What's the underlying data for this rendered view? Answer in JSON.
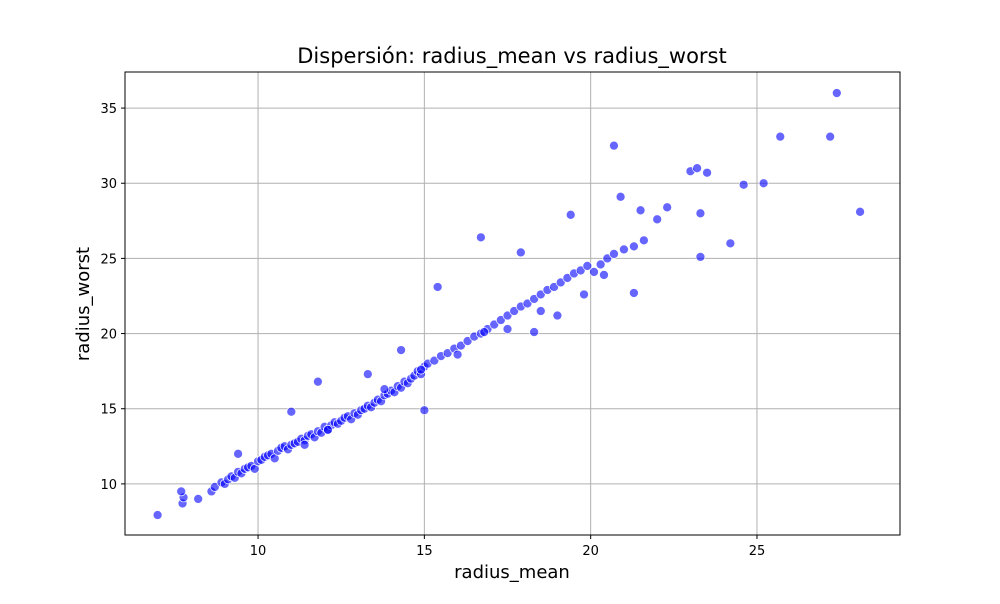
{
  "chart_data": {
    "type": "scatter",
    "title": "Dispersión: radius_mean vs radius_worst",
    "xlabel": "radius_mean",
    "ylabel": "radius_worst",
    "xlim": [
      6.0,
      29.3
    ],
    "ylim": [
      6.6,
      37.4
    ],
    "x_ticks": [
      10,
      15,
      20,
      25
    ],
    "y_ticks": [
      10,
      15,
      20,
      25,
      30,
      35
    ],
    "grid": true,
    "marker_color": "#0000ff",
    "marker_edge_color": "#ffffff",
    "marker_alpha": 0.6,
    "series": [
      {
        "x": [
          6.98,
          7.73,
          7.76,
          7.69,
          8.2,
          8.6,
          8.7,
          8.9,
          9.0,
          9.1,
          9.2,
          9.3,
          9.4,
          9.5,
          9.6,
          9.7,
          9.8,
          9.9,
          10.0,
          10.1,
          10.2,
          10.3,
          10.4,
          10.5,
          10.6,
          10.7,
          10.8,
          10.9,
          11.0,
          11.1,
          11.2,
          11.3,
          11.4,
          11.5,
          11.6,
          11.7,
          11.8,
          11.9,
          12.0,
          12.1,
          12.2,
          12.3,
          12.4,
          12.5,
          12.6,
          12.7,
          12.8,
          12.9,
          13.0,
          13.1,
          13.2,
          13.3,
          13.4,
          13.5,
          13.6,
          13.7,
          13.8,
          13.9,
          14.0,
          14.1,
          14.2,
          14.3,
          14.4,
          14.5,
          14.6,
          14.7,
          14.8,
          14.9,
          15.0,
          15.1,
          15.3,
          15.5,
          15.7,
          15.9,
          16.1,
          16.3,
          16.5,
          16.7,
          16.9,
          17.1,
          17.3,
          17.5,
          17.7,
          17.9,
          18.1,
          18.3,
          18.5,
          18.7,
          18.9,
          19.1,
          19.3,
          19.5,
          19.7,
          19.9,
          20.1,
          20.3,
          20.5,
          20.7,
          21.0,
          21.3,
          21.6,
          22.0,
          22.3,
          23.0,
          23.2,
          23.3,
          23.5,
          24.2,
          24.6,
          25.2,
          25.7,
          27.2,
          27.4,
          28.1,
          9.4,
          11.0,
          11.8,
          13.3,
          14.3,
          15.0,
          15.4,
          16.7,
          16.8,
          17.9,
          18.5,
          19.4,
          20.7,
          20.9,
          21.3,
          11.4,
          12.1,
          13.8,
          14.9,
          16.0,
          17.5,
          18.3,
          19.0,
          19.8,
          20.4,
          21.5,
          23.3
        ],
        "y": [
          7.93,
          8.7,
          9.1,
          9.5,
          9.0,
          9.5,
          9.8,
          10.1,
          10.0,
          10.3,
          10.5,
          10.4,
          10.8,
          10.7,
          11.0,
          11.1,
          11.2,
          11.0,
          11.5,
          11.6,
          11.8,
          11.9,
          12.0,
          11.7,
          12.2,
          12.4,
          12.5,
          12.3,
          12.6,
          12.7,
          12.8,
          13.0,
          12.9,
          13.2,
          13.3,
          13.1,
          13.5,
          13.4,
          13.8,
          13.6,
          13.9,
          14.1,
          14.0,
          14.2,
          14.4,
          14.5,
          14.3,
          14.7,
          14.6,
          14.9,
          15.0,
          15.2,
          15.1,
          15.4,
          15.6,
          15.5,
          15.9,
          16.0,
          16.2,
          16.1,
          16.5,
          16.4,
          16.8,
          16.7,
          17.0,
          17.2,
          17.5,
          17.3,
          17.8,
          18.0,
          18.2,
          18.5,
          18.7,
          19.0,
          19.2,
          19.5,
          19.8,
          20.0,
          20.3,
          20.6,
          20.9,
          21.2,
          21.5,
          21.8,
          22.0,
          22.3,
          22.6,
          22.9,
          23.1,
          23.4,
          23.7,
          24.0,
          24.2,
          24.5,
          24.1,
          24.6,
          25.0,
          25.3,
          25.6,
          25.8,
          26.2,
          27.6,
          28.4,
          30.8,
          31.0,
          25.1,
          30.7,
          26.0,
          29.9,
          30.0,
          33.1,
          33.1,
          36.0,
          28.1,
          12.0,
          14.8,
          16.8,
          17.3,
          18.9,
          14.9,
          23.1,
          26.4,
          20.1,
          25.4,
          21.5,
          27.9,
          32.5,
          29.1,
          22.7,
          12.6,
          13.6,
          16.3,
          17.6,
          18.6,
          20.3,
          20.1,
          21.2,
          22.6,
          23.9,
          28.2,
          28.0
        ]
      }
    ]
  }
}
